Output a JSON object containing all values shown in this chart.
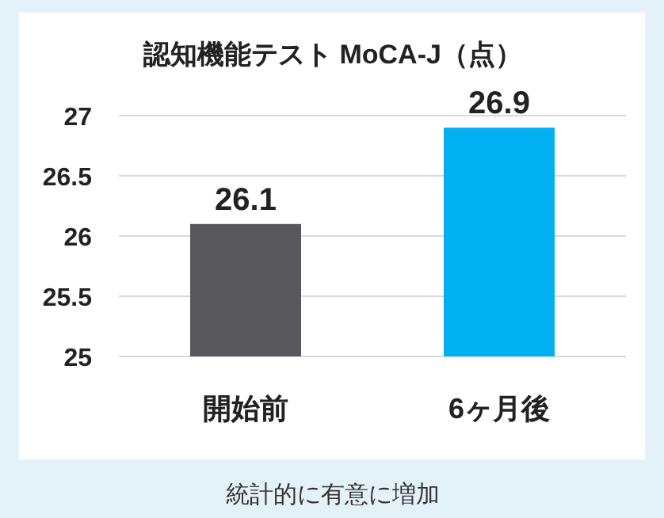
{
  "chart_data": {
    "type": "bar",
    "title": "認知機能テスト MoCA-J（点）",
    "categories": [
      "開始前",
      "6ヶ月後"
    ],
    "values": [
      26.1,
      26.9
    ],
    "colors": [
      "#58575c",
      "#00b0f0"
    ],
    "ylim": [
      25,
      27
    ],
    "yticks": [
      25,
      25.5,
      26,
      26.5,
      27
    ],
    "grid": "y",
    "data_labels": true,
    "annotations": [
      "統計的に有意に増加"
    ]
  }
}
